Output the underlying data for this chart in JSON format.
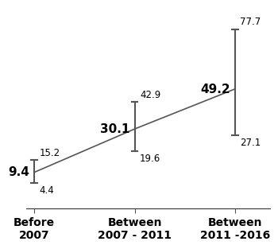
{
  "categories": [
    "Before\n2007",
    "Between\n2007 - 2011",
    "Between\n2011 -2016"
  ],
  "x_positions": [
    0,
    1,
    2
  ],
  "prevalence": [
    9.4,
    30.1,
    49.2
  ],
  "ci_upper": [
    15.2,
    42.9,
    77.7
  ],
  "ci_lower": [
    4.4,
    19.6,
    27.1
  ],
  "line_color": "#555555",
  "ci_color": "#555555",
  "background_color": "#ffffff",
  "tick_label_fontsize": 10,
  "prevalence_fontsize": 11,
  "ci_label_fontsize": 8.5
}
